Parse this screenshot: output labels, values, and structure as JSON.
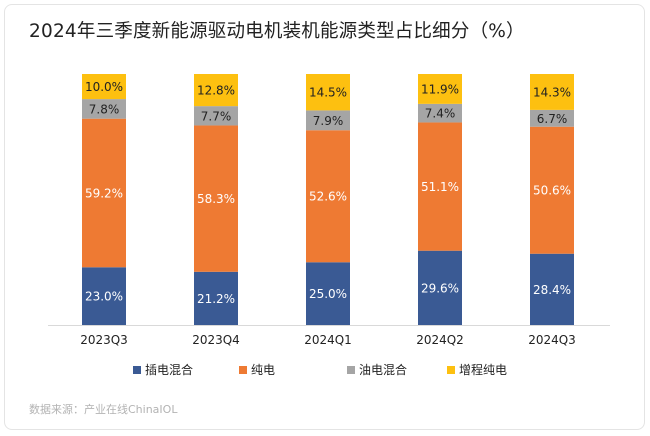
{
  "title": "2024年三季度新能源驱动电机装机能源类型占比细分（%）",
  "source": "数据来源：产业在线ChinaIOL",
  "colors": {
    "插电混合": "#3a5a94",
    "纯电": "#ee7a33",
    "油电混合": "#a5a5a5",
    "增程纯电": "#fdc010"
  },
  "chart_data": {
    "type": "bar",
    "stacked": true,
    "percent": true,
    "categories": [
      "2023Q3",
      "2023Q4",
      "2024Q1",
      "2024Q2",
      "2024Q3"
    ],
    "series": [
      {
        "name": "插电混合",
        "values": [
          23.0,
          21.2,
          25.0,
          29.6,
          28.4
        ]
      },
      {
        "name": "纯电",
        "values": [
          59.2,
          58.3,
          52.6,
          51.1,
          50.6
        ]
      },
      {
        "name": "油电混合",
        "values": [
          7.8,
          7.7,
          7.9,
          7.4,
          6.7
        ]
      },
      {
        "name": "增程纯电",
        "values": [
          10.0,
          12.8,
          14.5,
          11.9,
          14.3
        ]
      }
    ],
    "value_format": "%",
    "ylim": [
      0,
      100
    ],
    "grid": false,
    "legend_position": "bottom"
  }
}
